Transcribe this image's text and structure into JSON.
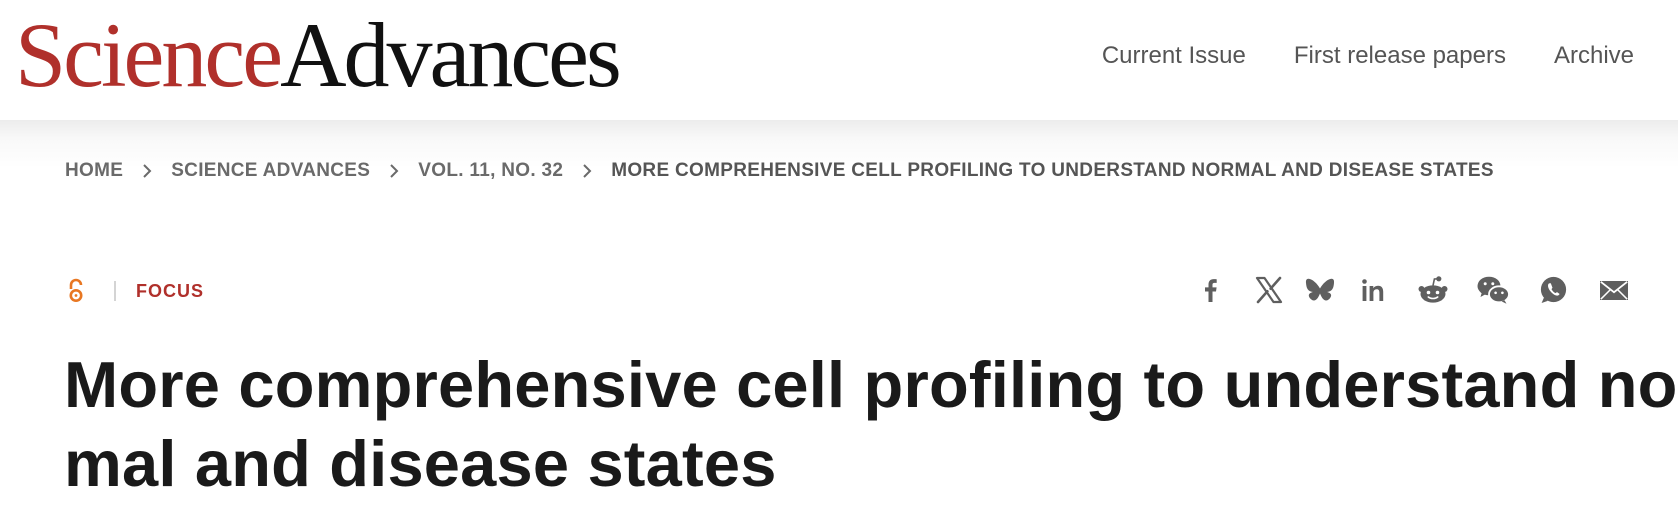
{
  "header": {
    "logo_science": "Science",
    "logo_advances": "Advances",
    "nav": [
      "Current Issue",
      "First release papers",
      "Archive"
    ]
  },
  "breadcrumb": [
    "HOME",
    "SCIENCE ADVANCES",
    "VOL. 11, NO. 32",
    "MORE COMPREHENSIVE CELL PROFILING TO UNDERSTAND NORMAL AND DISEASE STATES"
  ],
  "article": {
    "type_label": "FOCUS",
    "access_icon": "open-access-icon",
    "title_lines": [
      "More comprehensive cell profiling to understand nor-",
      "mal and disease states"
    ]
  },
  "share_icons": [
    "facebook-icon",
    "x-icon",
    "bluesky-icon",
    "linkedin-icon",
    "reddit-icon",
    "wechat-icon",
    "whatsapp-icon",
    "email-icon"
  ],
  "colors": {
    "brand_red": "#b0302b",
    "open_access_orange": "#e87722",
    "icon_gray": "#5f5f5f"
  }
}
